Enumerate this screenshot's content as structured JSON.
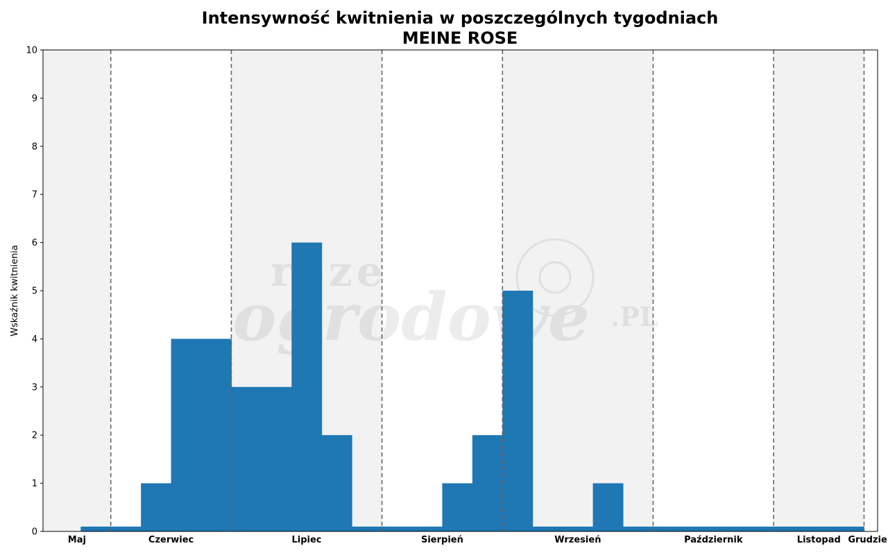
{
  "chart_data": {
    "type": "bar",
    "title": "Intensywność kwitnienia w poszczególnych tygodniach",
    "subtitle": "MEINE ROSE",
    "xlabel": "",
    "ylabel": "Wskaźnik kwitnienia",
    "ylim": [
      0,
      10
    ],
    "yticks": [
      0,
      1,
      2,
      3,
      4,
      5,
      6,
      7,
      8,
      9,
      10
    ],
    "grid": false,
    "bar_color": "#1f77b4",
    "shade_color": "#f2f2f2",
    "divider_color": "#666666",
    "weeks_visible": 27.7,
    "first_bar_start": 1.25,
    "values": [
      0.1,
      0.1,
      1,
      4,
      4,
      3,
      3,
      6,
      2,
      0.1,
      0.1,
      0.1,
      1,
      2,
      5,
      0.1,
      0.1,
      1,
      0.1,
      0.1,
      0.1,
      0.1,
      0.1,
      0.1,
      0.1,
      0.1
    ],
    "months": [
      {
        "name": "Maj",
        "start": 0,
        "end": 2.25,
        "shaded": true
      },
      {
        "name": "Czerwiec",
        "start": 2.25,
        "end": 6.25,
        "shaded": false
      },
      {
        "name": "Lipiec",
        "start": 6.25,
        "end": 11.25,
        "shaded": true
      },
      {
        "name": "Sierpień",
        "start": 11.25,
        "end": 15.25,
        "shaded": false
      },
      {
        "name": "Wrzesień",
        "start": 15.25,
        "end": 20.25,
        "shaded": true
      },
      {
        "name": "Październik",
        "start": 20.25,
        "end": 24.25,
        "shaded": false
      },
      {
        "name": "Listopad",
        "start": 24.25,
        "end": 27.25,
        "shaded": true
      },
      {
        "name": "Grudzień",
        "start": 27.25,
        "end": 27.7,
        "shaded": false
      }
    ]
  },
  "watermark": {
    "line1": "roze",
    "line2": "ogrodowe",
    "suffix": ".PL"
  }
}
